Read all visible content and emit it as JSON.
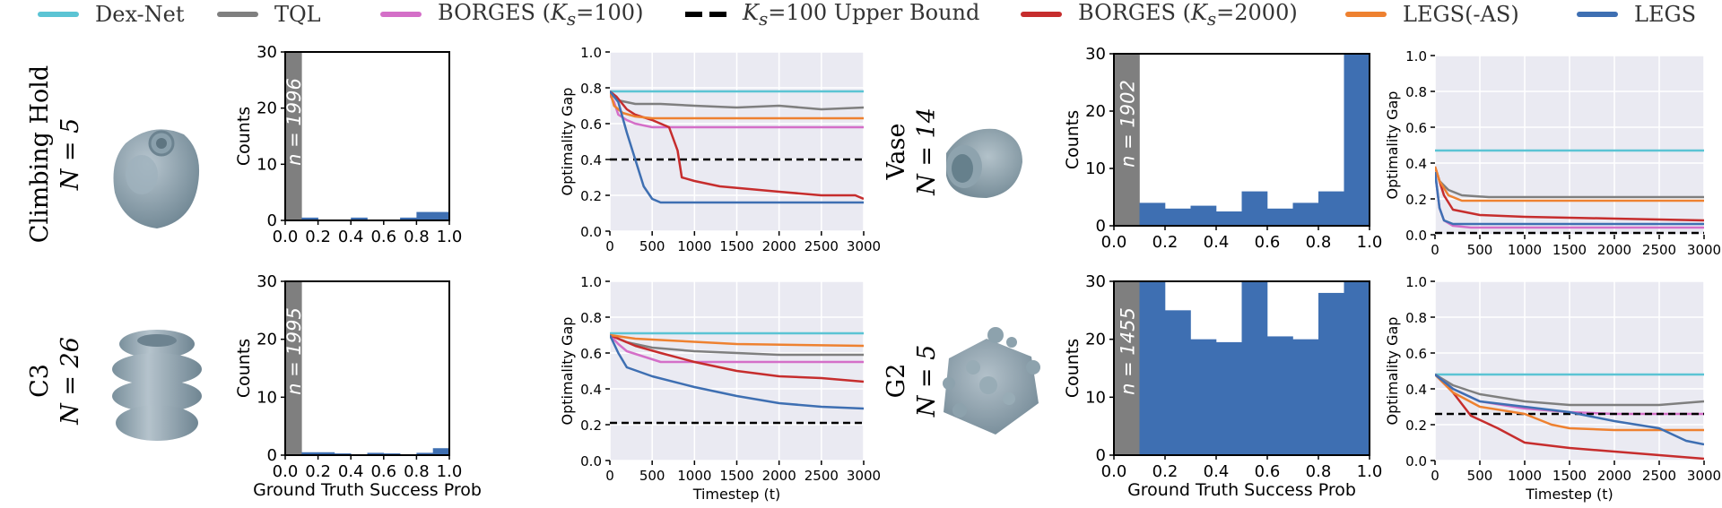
{
  "legend": [
    {
      "name": "Dex-Net",
      "color": "#5bc4d4"
    },
    {
      "name": "TQL",
      "color": "#7f7f7f"
    },
    {
      "name": "BORGES (K_s=100)",
      "color": "#d46fc8"
    },
    {
      "name": "K_s=100 Upper Bound",
      "color": "#000000"
    },
    {
      "name": "BORGES (K_s=2000)",
      "color": "#c62d2d"
    },
    {
      "name": "LEGS(-AS)",
      "color": "#ee8130"
    },
    {
      "name": "LEGS",
      "color": "#3e6fb2"
    }
  ],
  "legend_text": {
    "dexnet": "Dex-Net",
    "tql": "TQL",
    "borges100_a": "BORGES (",
    "borges100_k": "K",
    "borges100_s": "s",
    "borges100_b": "=100)",
    "ub_k": "K",
    "ub_s": "s",
    "ub_b": "=100 Upper Bound",
    "borges2000_a": "BORGES (",
    "borges2000_k": "K",
    "borges2000_s": "s",
    "borges2000_b": "=2000)",
    "legsas": "LEGS(-AS)",
    "legs": "LEGS"
  },
  "objects": [
    {
      "id": "climbing",
      "name": "Climbing Hold",
      "n_label": "N = 5"
    },
    {
      "id": "c3",
      "name": "C3",
      "n_label": "N = 26"
    },
    {
      "id": "vase",
      "name": "Vase",
      "n_label": "N = 14"
    },
    {
      "id": "g2",
      "name": "G2",
      "n_label": "N = 5"
    }
  ],
  "chart_data": [
    {
      "type": "bar",
      "object": "Climbing Hold",
      "ylabel": "Counts",
      "xlabel": "",
      "xlim": [
        0,
        1
      ],
      "ylim": [
        0,
        30
      ],
      "xticks": [
        "0.0",
        "0.2",
        "0.4",
        "0.6",
        "0.8",
        "1.0"
      ],
      "yticks": [
        "0",
        "10",
        "20",
        "30"
      ],
      "bin_width": 0.1,
      "bins": [
        0,
        0.1,
        0.2,
        0.3,
        0.4,
        0.5,
        0.6,
        0.7,
        0.8,
        0.9
      ],
      "values": [
        1996,
        0.5,
        0,
        0,
        0.5,
        0,
        0,
        0.5,
        1.5,
        1.5
      ],
      "annotation": "n = 1996"
    },
    {
      "type": "line",
      "object": "Climbing Hold",
      "ylabel": "Optimality Gap",
      "xlabel": "",
      "xlim": [
        0,
        3000
      ],
      "ylim": [
        0,
        1.0
      ],
      "xticks": [
        "0",
        "500",
        "1000",
        "1500",
        "2000",
        "2500",
        "3000"
      ],
      "yticks": [
        "0.0",
        "0.2",
        "0.4",
        "0.6",
        "0.8",
        "1.0"
      ],
      "series": [
        {
          "name": "Dex-Net",
          "x": [
            0,
            500,
            1000,
            1500,
            2000,
            2500,
            3000
          ],
          "y": [
            0.78,
            0.78,
            0.78,
            0.78,
            0.78,
            0.78,
            0.78
          ]
        },
        {
          "name": "TQL",
          "x": [
            0,
            100,
            300,
            600,
            1000,
            1500,
            2000,
            2500,
            3000
          ],
          "y": [
            0.77,
            0.73,
            0.71,
            0.71,
            0.7,
            0.69,
            0.7,
            0.68,
            0.69
          ]
        },
        {
          "name": "BORGES (K_s=100)",
          "x": [
            0,
            50,
            100,
            200,
            300,
            500,
            3000
          ],
          "y": [
            0.76,
            0.72,
            0.65,
            0.62,
            0.6,
            0.58,
            0.58
          ]
        },
        {
          "name": "K_s=100 Upper Bound",
          "x": [
            0,
            3000
          ],
          "y": [
            0.4,
            0.4
          ]
        },
        {
          "name": "BORGES (K_s=2000)",
          "x": [
            0,
            80,
            200,
            300,
            500,
            700,
            800,
            850,
            1000,
            1300,
            2000,
            2500,
            2900,
            3000
          ],
          "y": [
            0.78,
            0.75,
            0.68,
            0.65,
            0.62,
            0.58,
            0.45,
            0.3,
            0.28,
            0.25,
            0.22,
            0.2,
            0.2,
            0.18
          ]
        },
        {
          "name": "LEGS(-AS)",
          "x": [
            0,
            50,
            150,
            300,
            500,
            3000
          ],
          "y": [
            0.78,
            0.7,
            0.66,
            0.64,
            0.63,
            0.63
          ]
        },
        {
          "name": "LEGS",
          "x": [
            0,
            100,
            200,
            300,
            400,
            500,
            600,
            800,
            1200,
            3000
          ],
          "y": [
            0.78,
            0.72,
            0.55,
            0.4,
            0.25,
            0.18,
            0.16,
            0.16,
            0.16,
            0.16
          ]
        }
      ]
    },
    {
      "type": "bar",
      "object": "C3",
      "ylabel": "Counts",
      "xlabel": "Ground Truth Success Prob",
      "xlim": [
        0,
        1
      ],
      "ylim": [
        0,
        30
      ],
      "xticks": [
        "0.0",
        "0.2",
        "0.4",
        "0.6",
        "0.8",
        "1.0"
      ],
      "yticks": [
        "0",
        "10",
        "20",
        "30"
      ],
      "bin_width": 0.1,
      "bins": [
        0,
        0.1,
        0.2,
        0.3,
        0.4,
        0.5,
        0.6,
        0.7,
        0.8,
        0.9
      ],
      "values": [
        1995,
        0.5,
        0.5,
        0.3,
        0,
        0.4,
        0.3,
        0,
        0.4,
        1.2
      ],
      "annotation": "n = 1995"
    },
    {
      "type": "line",
      "object": "C3",
      "ylabel": "Optimality Gap",
      "xlabel": "Timestep (t)",
      "xlim": [
        0,
        3000
      ],
      "ylim": [
        0,
        1.0
      ],
      "xticks": [
        "0",
        "500",
        "1000",
        "1500",
        "2000",
        "2500",
        "3000"
      ],
      "yticks": [
        "0.0",
        "0.2",
        "0.4",
        "0.6",
        "0.8",
        "1.0"
      ],
      "series": [
        {
          "name": "Dex-Net",
          "x": [
            0,
            500,
            1000,
            1500,
            2000,
            2500,
            3000
          ],
          "y": [
            0.71,
            0.71,
            0.71,
            0.71,
            0.71,
            0.71,
            0.71
          ]
        },
        {
          "name": "TQL",
          "x": [
            0,
            200,
            500,
            1000,
            1500,
            2000,
            2500,
            3000
          ],
          "y": [
            0.7,
            0.66,
            0.63,
            0.61,
            0.6,
            0.59,
            0.59,
            0.59
          ]
        },
        {
          "name": "BORGES (K_s=100)",
          "x": [
            0,
            100,
            200,
            400,
            600,
            3000
          ],
          "y": [
            0.7,
            0.65,
            0.61,
            0.58,
            0.55,
            0.55
          ]
        },
        {
          "name": "K_s=100 Upper Bound",
          "x": [
            0,
            3000
          ],
          "y": [
            0.21,
            0.21
          ]
        },
        {
          "name": "BORGES (K_s=2000)",
          "x": [
            0,
            300,
            600,
            1000,
            1500,
            2000,
            2500,
            3000
          ],
          "y": [
            0.7,
            0.64,
            0.6,
            0.55,
            0.5,
            0.47,
            0.46,
            0.44
          ]
        },
        {
          "name": "LEGS(-AS)",
          "x": [
            0,
            300,
            700,
            1500,
            3000
          ],
          "y": [
            0.7,
            0.68,
            0.67,
            0.65,
            0.64
          ]
        },
        {
          "name": "LEGS",
          "x": [
            0,
            100,
            200,
            500,
            1000,
            1500,
            2000,
            2500,
            3000
          ],
          "y": [
            0.7,
            0.6,
            0.52,
            0.47,
            0.41,
            0.36,
            0.32,
            0.3,
            0.29
          ]
        }
      ]
    },
    {
      "type": "bar",
      "object": "Vase",
      "ylabel": "Counts",
      "xlabel": "",
      "xlim": [
        0,
        1
      ],
      "ylim": [
        0,
        30
      ],
      "xticks": [
        "0.0",
        "0.2",
        "0.4",
        "0.6",
        "0.8",
        "1.0"
      ],
      "yticks": [
        "0",
        "10",
        "20",
        "30"
      ],
      "bin_width": 0.1,
      "bins": [
        0,
        0.1,
        0.2,
        0.3,
        0.4,
        0.5,
        0.6,
        0.7,
        0.8,
        0.9
      ],
      "values": [
        1902,
        4,
        3,
        3.5,
        2.5,
        6,
        3,
        4,
        6,
        30
      ],
      "annotation": "n = 1902"
    },
    {
      "type": "line",
      "object": "Vase",
      "ylabel": "Optimality Gap",
      "xlabel": "",
      "xlim": [
        0,
        3000
      ],
      "ylim": [
        0,
        1.0
      ],
      "xticks": [
        "0",
        "500",
        "1000",
        "1500",
        "2000",
        "2500",
        "3000"
      ],
      "yticks": [
        "0.0",
        "0.2",
        "0.4",
        "0.6",
        "0.8",
        "1.0"
      ],
      "series": [
        {
          "name": "Dex-Net",
          "x": [
            0,
            500,
            1000,
            1500,
            2000,
            2500,
            3000
          ],
          "y": [
            0.47,
            0.47,
            0.47,
            0.47,
            0.47,
            0.47,
            0.47
          ]
        },
        {
          "name": "TQL",
          "x": [
            0,
            50,
            150,
            300,
            600,
            1000,
            2000,
            3000
          ],
          "y": [
            0.38,
            0.3,
            0.25,
            0.22,
            0.21,
            0.21,
            0.21,
            0.21
          ]
        },
        {
          "name": "BORGES (K_s=100)",
          "x": [
            0,
            50,
            100,
            200,
            400,
            3000
          ],
          "y": [
            0.35,
            0.15,
            0.08,
            0.05,
            0.04,
            0.04
          ]
        },
        {
          "name": "K_s=100 Upper Bound",
          "x": [
            0,
            3000
          ],
          "y": [
            0.01,
            0.01
          ]
        },
        {
          "name": "BORGES (K_s=2000)",
          "x": [
            0,
            100,
            200,
            500,
            1000,
            2000,
            3000
          ],
          "y": [
            0.38,
            0.22,
            0.14,
            0.11,
            0.1,
            0.09,
            0.08
          ]
        },
        {
          "name": "LEGS(-AS)",
          "x": [
            0,
            50,
            150,
            300,
            3000
          ],
          "y": [
            0.38,
            0.3,
            0.22,
            0.19,
            0.19
          ]
        },
        {
          "name": "LEGS",
          "x": [
            0,
            50,
            100,
            200,
            400,
            3000
          ],
          "y": [
            0.35,
            0.15,
            0.08,
            0.06,
            0.06,
            0.06
          ]
        }
      ]
    },
    {
      "type": "bar",
      "object": "G2",
      "ylabel": "Counts",
      "xlabel": "Ground Truth Success Prob",
      "xlim": [
        0,
        1
      ],
      "ylim": [
        0,
        30
      ],
      "xticks": [
        "0.0",
        "0.2",
        "0.4",
        "0.6",
        "0.8",
        "1.0"
      ],
      "yticks": [
        "0",
        "10",
        "20",
        "30"
      ],
      "bin_width": 0.1,
      "bins": [
        0,
        0.1,
        0.2,
        0.3,
        0.4,
        0.5,
        0.6,
        0.7,
        0.8,
        0.9
      ],
      "values": [
        1455,
        30,
        25,
        20,
        19.5,
        30,
        20.5,
        20,
        28,
        30
      ],
      "annotation": "n = 1455"
    },
    {
      "type": "line",
      "object": "G2",
      "ylabel": "Optimality Gap",
      "xlabel": "Timestep (t)",
      "xlim": [
        0,
        3000
      ],
      "ylim": [
        0,
        1.0
      ],
      "xticks": [
        "0",
        "500",
        "1000",
        "1500",
        "2000",
        "2500",
        "3000"
      ],
      "yticks": [
        "0.0",
        "0.2",
        "0.4",
        "0.6",
        "0.8",
        "1.0"
      ],
      "series": [
        {
          "name": "Dex-Net",
          "x": [
            0,
            500,
            1000,
            1500,
            2000,
            2500,
            3000
          ],
          "y": [
            0.48,
            0.48,
            0.48,
            0.48,
            0.48,
            0.48,
            0.48
          ]
        },
        {
          "name": "TQL",
          "x": [
            0,
            200,
            500,
            1000,
            1500,
            2000,
            2500,
            3000
          ],
          "y": [
            0.48,
            0.42,
            0.37,
            0.33,
            0.31,
            0.31,
            0.31,
            0.33
          ]
        },
        {
          "name": "BORGES (K_s=100)",
          "x": [
            0,
            200,
            500,
            1000,
            1500,
            2000,
            3000
          ],
          "y": [
            0.48,
            0.4,
            0.33,
            0.29,
            0.27,
            0.26,
            0.26
          ]
        },
        {
          "name": "K_s=100 Upper Bound",
          "x": [
            0,
            3000
          ],
          "y": [
            0.26,
            0.26
          ]
        },
        {
          "name": "BORGES (K_s=2000)",
          "x": [
            0,
            200,
            400,
            700,
            1000,
            1500,
            2000,
            2500,
            3000
          ],
          "y": [
            0.48,
            0.38,
            0.25,
            0.18,
            0.1,
            0.07,
            0.05,
            0.03,
            0.01
          ]
        },
        {
          "name": "LEGS(-AS)",
          "x": [
            0,
            200,
            500,
            1000,
            1300,
            1500,
            2000,
            2500,
            3000
          ],
          "y": [
            0.48,
            0.38,
            0.3,
            0.26,
            0.2,
            0.18,
            0.17,
            0.17,
            0.17
          ]
        },
        {
          "name": "LEGS",
          "x": [
            0,
            200,
            500,
            1000,
            1500,
            2000,
            2500,
            2800,
            3000
          ],
          "y": [
            0.48,
            0.4,
            0.33,
            0.3,
            0.27,
            0.22,
            0.18,
            0.11,
            0.09
          ]
        }
      ]
    }
  ]
}
